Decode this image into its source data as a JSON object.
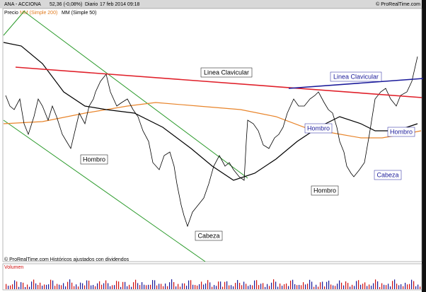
{
  "header": {
    "symbol": "ANA - ACCIONA",
    "quote": "52,36 (-0,08%)",
    "period": "Diario",
    "timestamp": "17 feb 2014 09:18",
    "brand": "© ProRealTime.com"
  },
  "legend": {
    "price": "Precio",
    "ma200": "MM (Simple 200)",
    "ma50": "MM (Simple 50)"
  },
  "annotations": {
    "neckline_red": "Linea Clavicular",
    "neckline_blue": "Linea Clavicular",
    "shoulder_1": "Hombro",
    "head_1": "Cabeza",
    "shoulder_2": "Hombro",
    "shoulder_3": "Hombro",
    "head_2": "Cabeza",
    "shoulder_4": "Hombro"
  },
  "footer": "© ProRealTime.com Históricos ajustados con dividendos",
  "volume_label": "Volumen"
}
